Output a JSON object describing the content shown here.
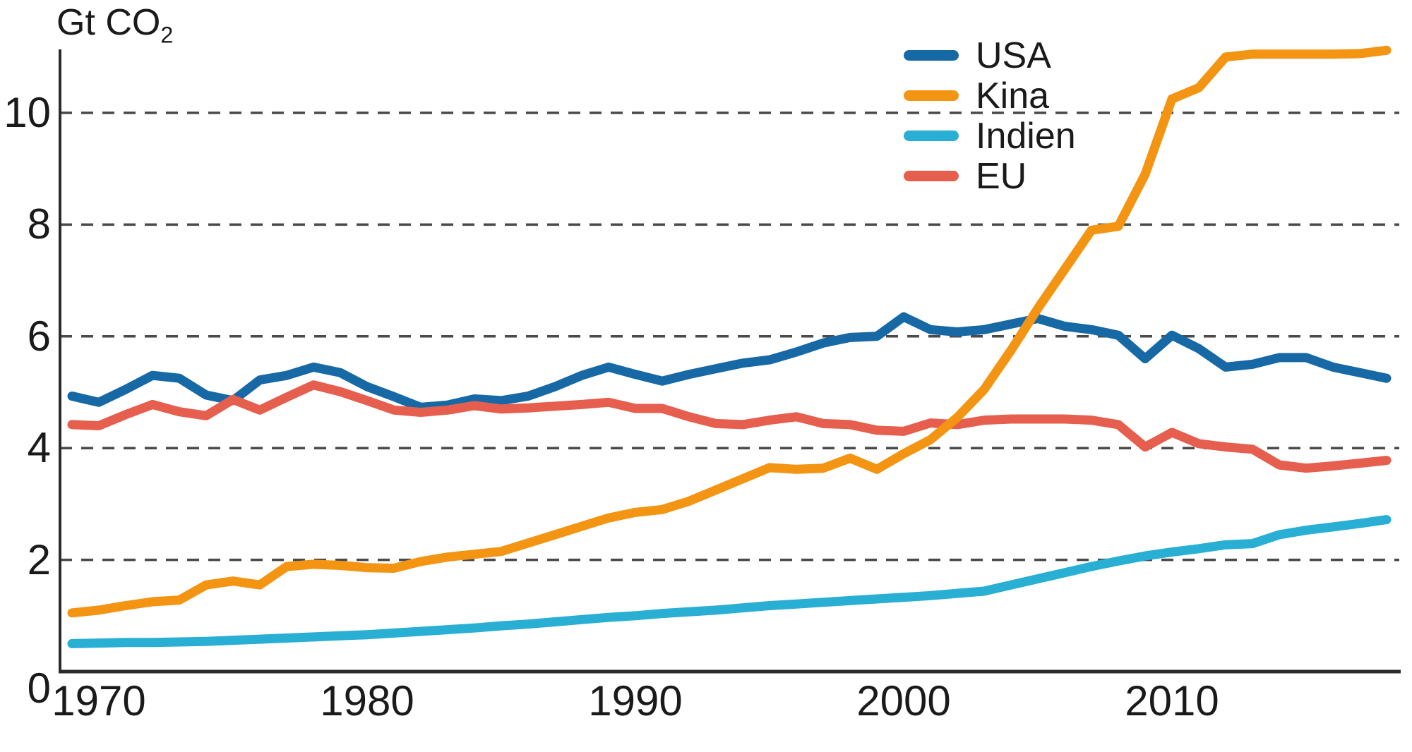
{
  "page": {
    "background": "#ffffff"
  },
  "chart_data": {
    "type": "line",
    "title": "",
    "ylabel": {
      "text": "Gt CO",
      "subscript": "2"
    },
    "xlabel": "",
    "x_ticks": [
      1970,
      1980,
      1990,
      2000,
      2010
    ],
    "y_ticks": [
      0,
      2,
      4,
      6,
      8,
      10
    ],
    "xlim": [
      1968.6,
      2018.6
    ],
    "ylim": [
      0,
      11.4
    ],
    "grid": "horizontal dashed lines at 2,4,6,8,10",
    "legend_position": "top-right-inside",
    "axis_color": "#2b2b2b",
    "grid_color": "#4a4a4a",
    "text_color": "#1a1a1a",
    "x": [
      1969,
      1970,
      1971,
      1972,
      1973,
      1974,
      1975,
      1976,
      1977,
      1978,
      1979,
      1980,
      1981,
      1982,
      1983,
      1984,
      1985,
      1986,
      1987,
      1988,
      1989,
      1990,
      1991,
      1992,
      1993,
      1994,
      1995,
      1996,
      1997,
      1998,
      1999,
      2000,
      2001,
      2002,
      2003,
      2004,
      2005,
      2006,
      2007,
      2008,
      2009,
      2010,
      2011,
      2012,
      2013,
      2014,
      2015,
      2016,
      2017,
      2018
    ],
    "series": [
      {
        "name": "USA",
        "color": "#1769a6",
        "values": [
          4.93,
          4.82,
          5.05,
          5.3,
          5.25,
          4.95,
          4.85,
          5.22,
          5.3,
          5.45,
          5.35,
          5.1,
          4.92,
          4.73,
          4.77,
          4.88,
          4.85,
          4.93,
          5.1,
          5.3,
          5.45,
          5.32,
          5.2,
          5.32,
          5.42,
          5.52,
          5.58,
          5.72,
          5.88,
          5.98,
          6.0,
          6.35,
          6.12,
          6.08,
          6.12,
          6.22,
          6.32,
          6.18,
          6.12,
          6.02,
          5.6,
          6.02,
          5.78,
          5.45,
          5.5,
          5.62,
          5.62,
          5.45,
          5.35,
          5.25
        ]
      },
      {
        "name": "Kina",
        "color": "#f39412",
        "values": [
          1.05,
          1.1,
          1.18,
          1.25,
          1.28,
          1.55,
          1.62,
          1.55,
          1.88,
          1.92,
          1.9,
          1.86,
          1.85,
          1.97,
          2.05,
          2.1,
          2.15,
          2.3,
          2.45,
          2.6,
          2.75,
          2.85,
          2.9,
          3.05,
          3.25,
          3.45,
          3.65,
          3.62,
          3.64,
          3.82,
          3.62,
          3.9,
          4.15,
          4.55,
          5.05,
          5.75,
          6.5,
          7.2,
          7.9,
          7.97,
          8.9,
          10.25,
          10.45,
          11.0,
          11.05,
          11.05,
          11.05,
          11.05,
          11.06,
          11.12
        ]
      },
      {
        "name": "Indien",
        "color": "#29afd4",
        "values": [
          0.5,
          0.51,
          0.52,
          0.52,
          0.53,
          0.54,
          0.56,
          0.58,
          0.6,
          0.62,
          0.64,
          0.66,
          0.69,
          0.72,
          0.75,
          0.78,
          0.82,
          0.85,
          0.89,
          0.93,
          0.97,
          1.0,
          1.04,
          1.07,
          1.1,
          1.14,
          1.18,
          1.21,
          1.24,
          1.27,
          1.3,
          1.33,
          1.36,
          1.4,
          1.44,
          1.55,
          1.66,
          1.77,
          1.88,
          1.98,
          2.07,
          2.14,
          2.2,
          2.27,
          2.29,
          2.45,
          2.53,
          2.59,
          2.65,
          2.72
        ]
      },
      {
        "name": "EU",
        "color": "#e65f4e",
        "values": [
          4.42,
          4.4,
          4.6,
          4.78,
          4.65,
          4.58,
          4.87,
          4.68,
          4.91,
          5.13,
          5.01,
          4.85,
          4.68,
          4.64,
          4.68,
          4.76,
          4.7,
          4.72,
          4.75,
          4.78,
          4.82,
          4.71,
          4.71,
          4.56,
          4.44,
          4.42,
          4.5,
          4.56,
          4.44,
          4.42,
          4.32,
          4.3,
          4.45,
          4.42,
          4.5,
          4.52,
          4.52,
          4.52,
          4.5,
          4.42,
          4.02,
          4.28,
          4.08,
          4.02,
          3.98,
          3.7,
          3.64,
          3.68,
          3.73,
          3.78
        ]
      }
    ]
  }
}
